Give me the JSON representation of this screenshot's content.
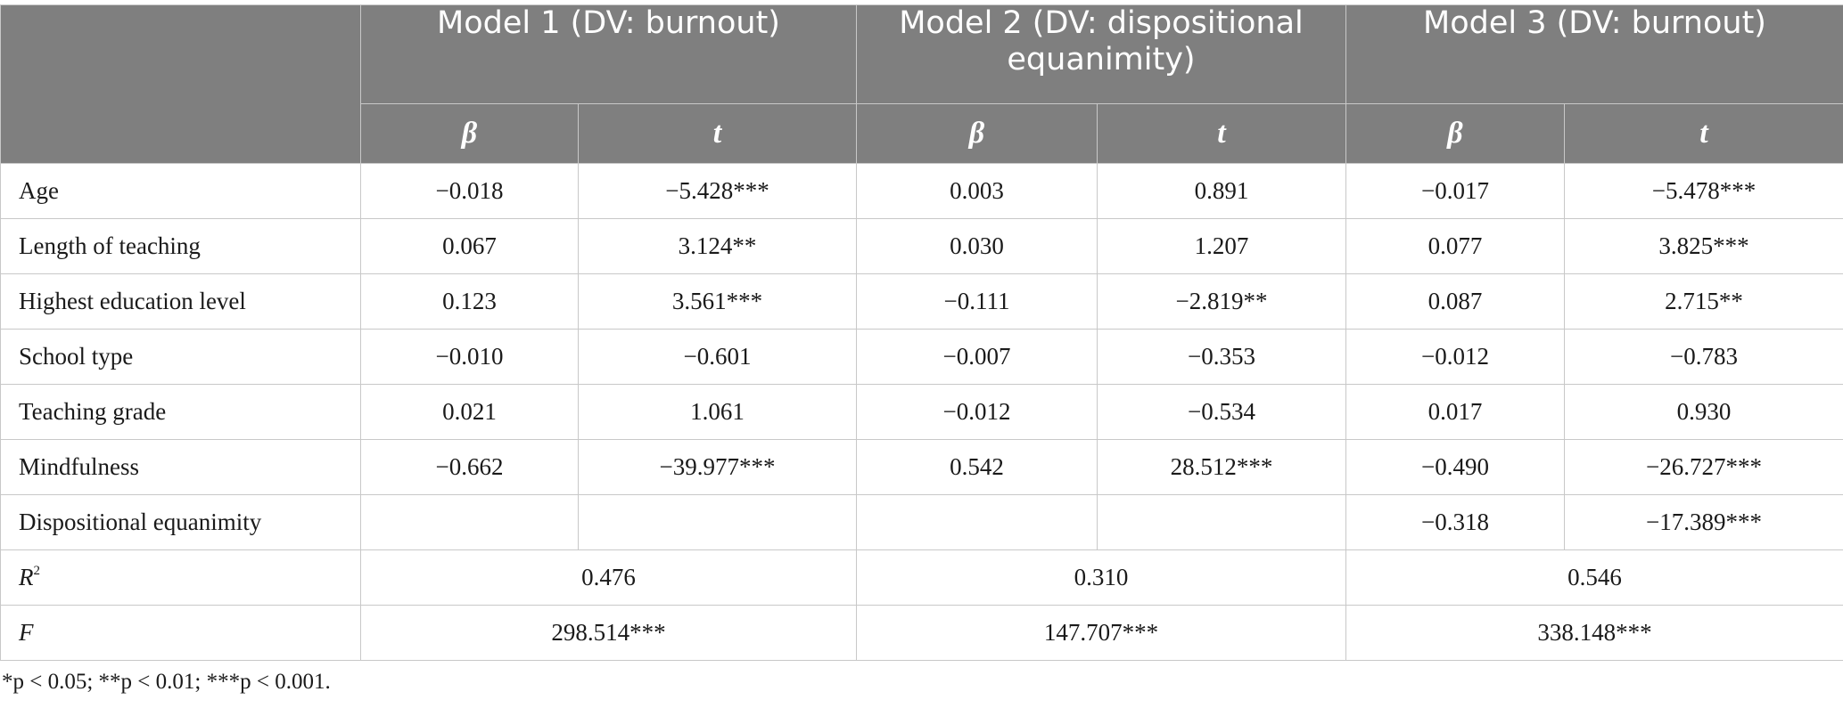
{
  "header": {
    "models": [
      {
        "title": "Model 1 (DV: burnout)"
      },
      {
        "title": "Model 2 (DV: dispositional equanimity)"
      },
      {
        "title": "Model 3 (DV: burnout)"
      }
    ],
    "beta_label": "β",
    "t_label": "t"
  },
  "rows": [
    {
      "label": "Age",
      "values": [
        "−0.018",
        "−5.428***",
        "0.003",
        "0.891",
        "−0.017",
        "−5.478***"
      ]
    },
    {
      "label": "Length of teaching",
      "values": [
        "0.067",
        "3.124**",
        "0.030",
        "1.207",
        "0.077",
        "3.825***"
      ]
    },
    {
      "label": "Highest education level",
      "values": [
        "0.123",
        "3.561***",
        "−0.111",
        "−2.819**",
        "0.087",
        "2.715**"
      ]
    },
    {
      "label": "School type",
      "values": [
        "−0.010",
        "−0.601",
        "−0.007",
        "−0.353",
        "−0.012",
        "−0.783"
      ]
    },
    {
      "label": "Teaching grade",
      "values": [
        "0.021",
        "1.061",
        "−0.012",
        "−0.534",
        "0.017",
        "0.930"
      ]
    },
    {
      "label": "Mindfulness",
      "values": [
        "−0.662",
        "−39.977***",
        "0.542",
        "28.512***",
        "−0.490",
        "−26.727***"
      ]
    },
    {
      "label": "Dispositional equanimity",
      "values": [
        "",
        "",
        "",
        "",
        "−0.318",
        "−17.389***"
      ]
    }
  ],
  "summary": {
    "r2": {
      "label": "R",
      "sup": "2",
      "values": [
        "0.476",
        "0.310",
        "0.546"
      ]
    },
    "f": {
      "label": "F",
      "values": [
        "298.514***",
        "147.707***",
        "338.148***"
      ]
    }
  },
  "footnote": "*p < 0.05; **p < 0.01; ***p < 0.001."
}
